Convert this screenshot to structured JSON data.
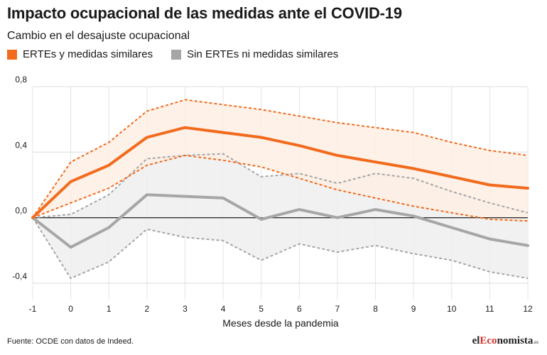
{
  "chart_data": {
    "type": "line",
    "title": "Impacto ocupacional de las medidas ante el COVID-19",
    "subtitle": "Cambio en el desajuste ocupacional",
    "xlabel": "Meses desde la pandemia",
    "ylabel": "",
    "x": [
      -1,
      0,
      1,
      2,
      3,
      4,
      5,
      6,
      7,
      8,
      9,
      10,
      11,
      12
    ],
    "xticks": [
      "-1",
      "0",
      "1",
      "2",
      "3",
      "4",
      "5",
      "6",
      "7",
      "8",
      "9",
      "10",
      "11",
      "12"
    ],
    "ylim": [
      -0.5,
      0.8
    ],
    "yticks": [
      -0.4,
      0.0,
      0.4,
      0.8
    ],
    "ytick_labels": [
      "-0,4",
      "0,0",
      "0,4",
      "0,8"
    ],
    "grid": true,
    "legend_position": "top-left",
    "series": [
      {
        "name": "ERTEs y medidas similares",
        "color": "#f26b1d",
        "band_color": "#fdeee4",
        "values": [
          0.0,
          0.22,
          0.32,
          0.49,
          0.55,
          0.52,
          0.49,
          0.44,
          0.38,
          0.34,
          0.3,
          0.25,
          0.2,
          0.18
        ],
        "lower": [
          0.0,
          0.09,
          0.18,
          0.32,
          0.38,
          0.35,
          0.31,
          0.24,
          0.17,
          0.12,
          0.07,
          0.03,
          -0.01,
          -0.02
        ],
        "upper": [
          0.0,
          0.34,
          0.46,
          0.65,
          0.72,
          0.69,
          0.66,
          0.62,
          0.58,
          0.55,
          0.52,
          0.46,
          0.41,
          0.38
        ]
      },
      {
        "name": "Sin ERTEs ni medidas similares",
        "color": "#a6a6a6",
        "band_color": "#efefef",
        "values": [
          0.0,
          -0.18,
          -0.06,
          0.14,
          0.13,
          0.12,
          -0.01,
          0.05,
          0.0,
          0.05,
          0.01,
          -0.06,
          -0.13,
          -0.17
        ],
        "lower": [
          0.0,
          -0.37,
          -0.27,
          -0.07,
          -0.12,
          -0.14,
          -0.26,
          -0.16,
          -0.21,
          -0.17,
          -0.22,
          -0.26,
          -0.33,
          -0.37
        ],
        "upper": [
          0.0,
          0.02,
          0.14,
          0.36,
          0.38,
          0.39,
          0.25,
          0.27,
          0.21,
          0.27,
          0.24,
          0.16,
          0.09,
          0.03
        ]
      }
    ]
  },
  "source_text": "Fuente: OCDE con datos de Indeed.",
  "brand": {
    "prefix": "el",
    "accent": "Eco",
    "rest": "nomista",
    "suffix": ".es",
    "accent_color": "#d4312a"
  }
}
